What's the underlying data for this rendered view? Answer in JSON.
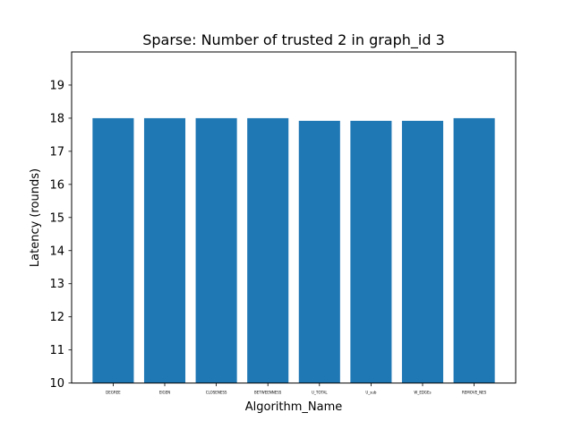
{
  "chart_data": {
    "type": "bar",
    "title": "Sparse: Number of trusted 2 in graph_id 3",
    "xlabel": "Algorithm_Name",
    "ylabel": "Latency (rounds)",
    "categories": [
      "DEGREE",
      "EIGEN",
      "CLOSENESS",
      "BETWEENNESS",
      "U_TOTAL",
      "U_sub",
      "W_EDGEs",
      "REMOVE_NES"
    ],
    "values": [
      18,
      18,
      18,
      18,
      17.92,
      17.92,
      17.92,
      18
    ],
    "ylim": [
      10,
      20
    ],
    "yticks": [
      10,
      11,
      12,
      13,
      14,
      15,
      16,
      17,
      18,
      19
    ],
    "bar_color": "#1f77b4",
    "grid": false,
    "legend": "none"
  }
}
